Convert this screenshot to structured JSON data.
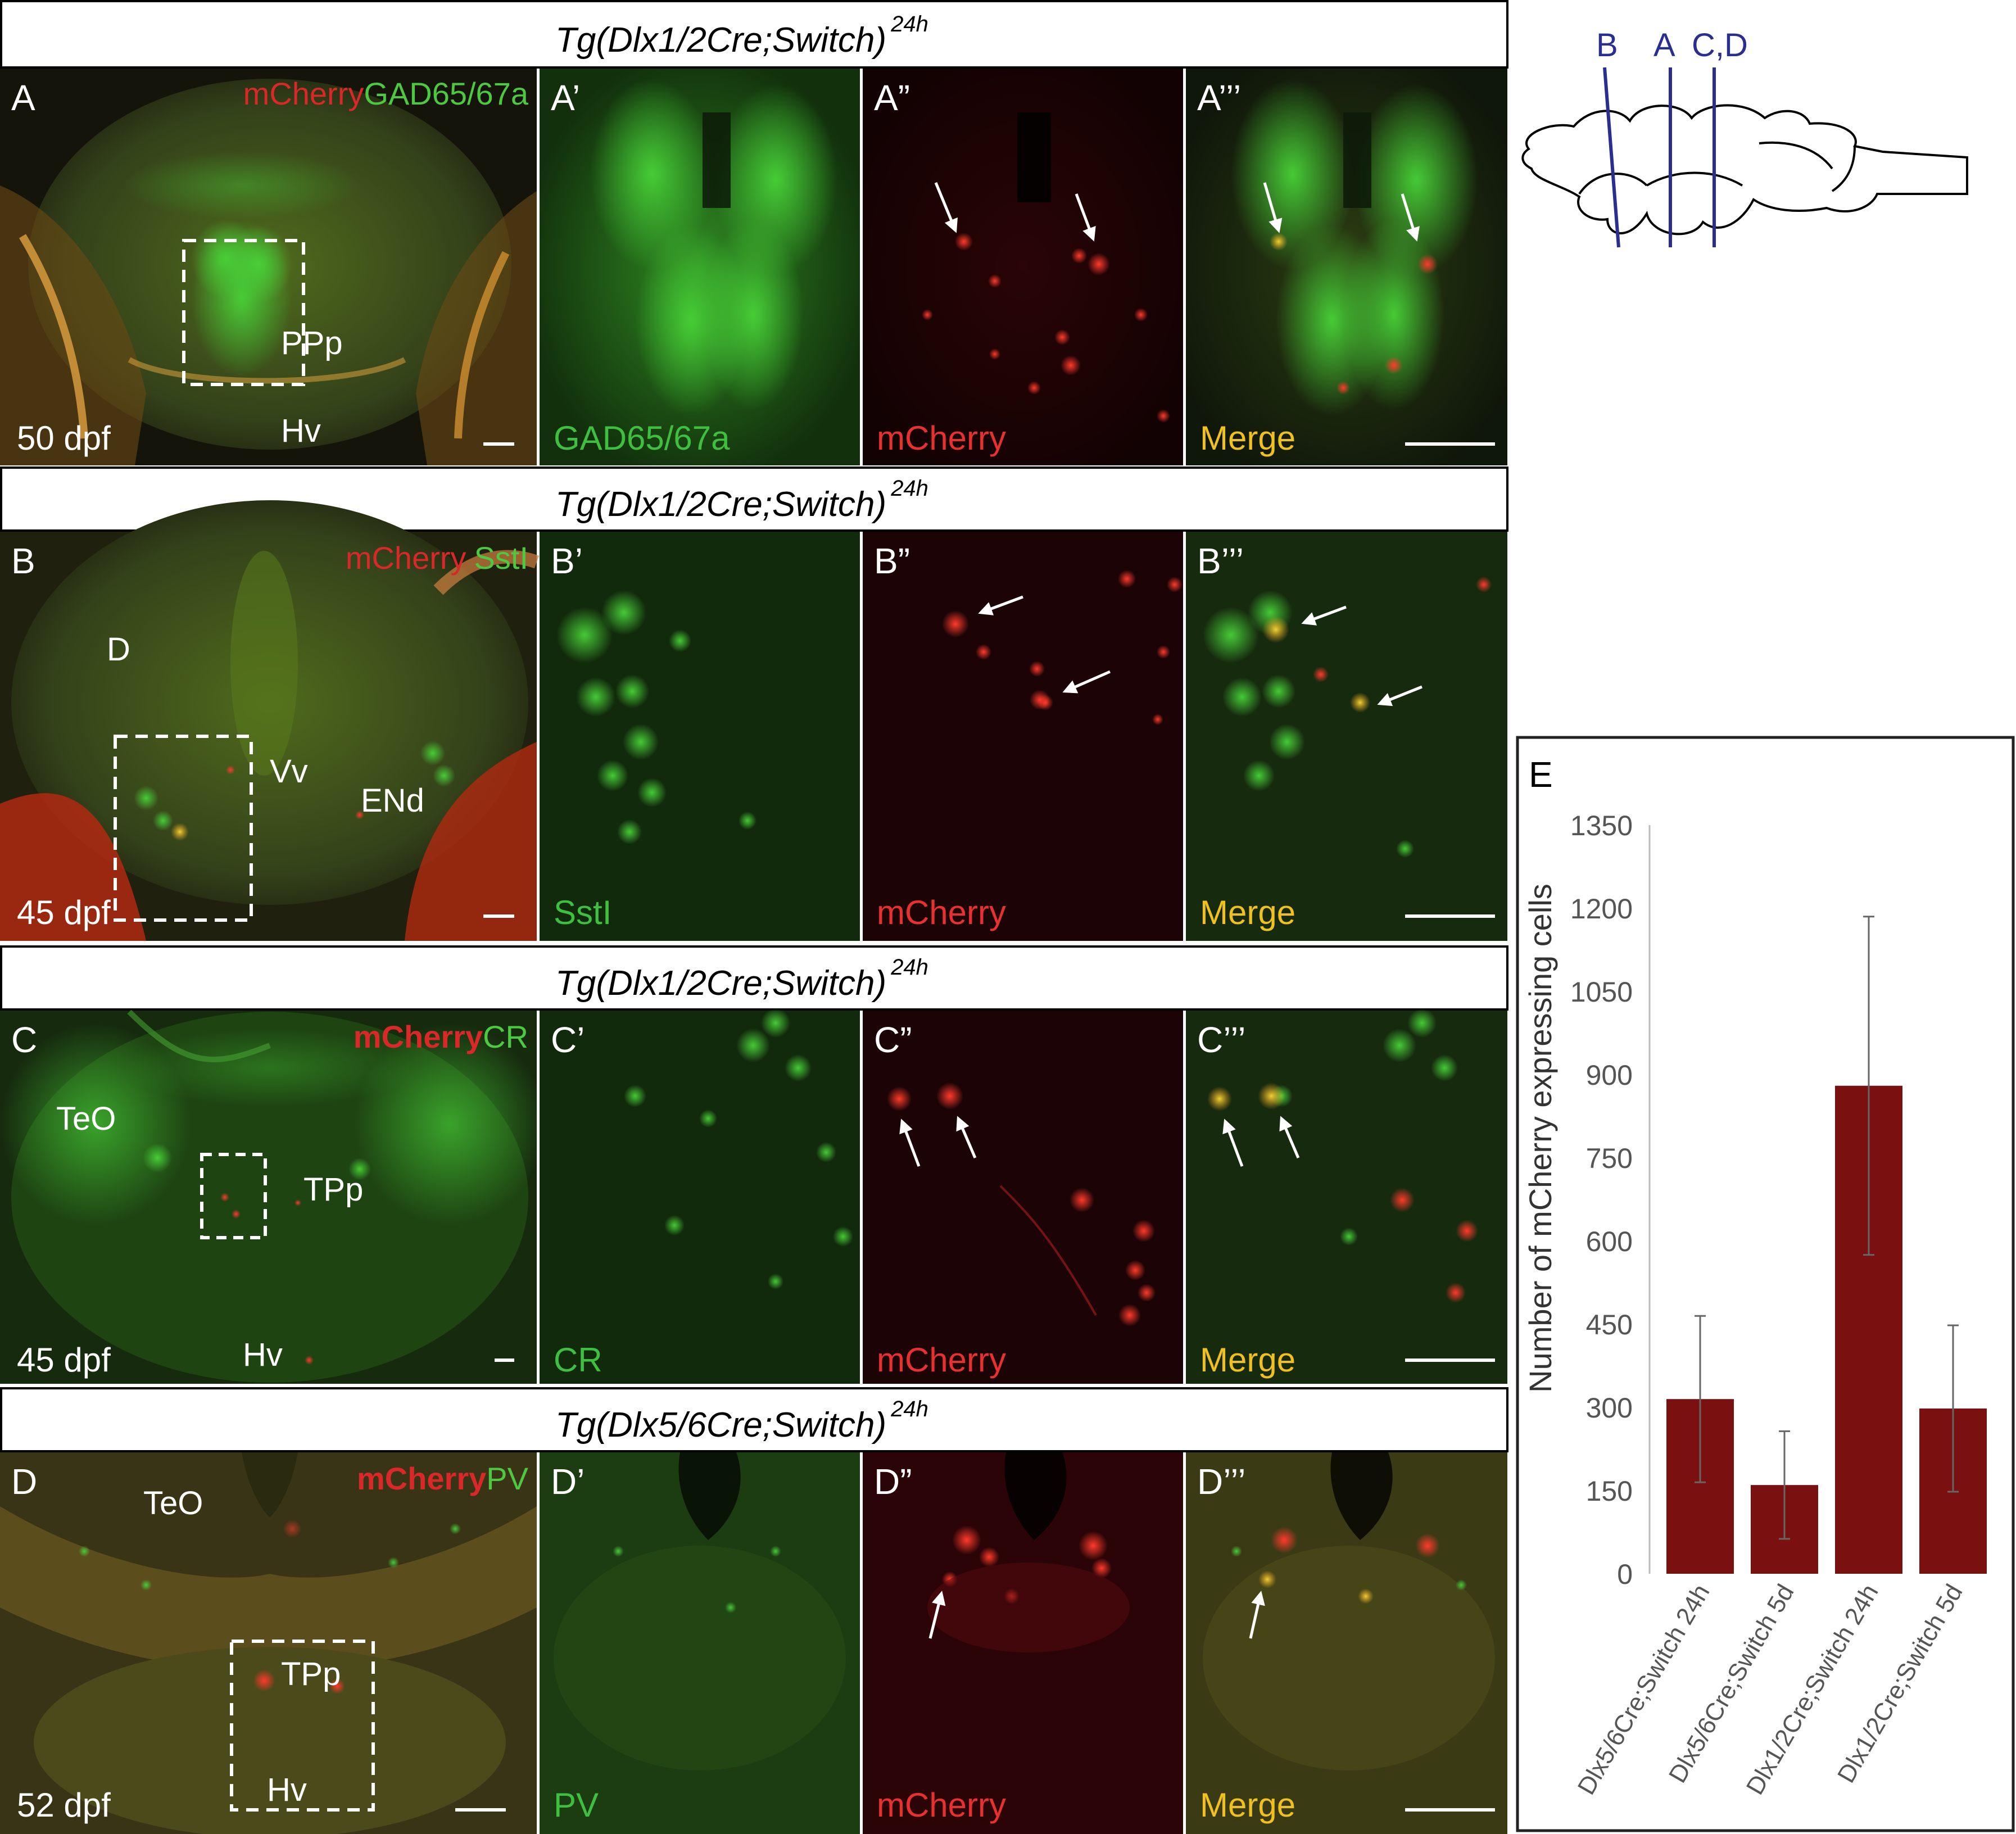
{
  "rows": [
    {
      "title_main": "Tg(Dlx1/2Cre;Switch)",
      "title_sup": "24h",
      "overview": {
        "letter": "A",
        "stain": {
          "red": "mCherry",
          "green": "GAD65/67a"
        },
        "stage": "50 dpf",
        "regions": [
          "PPp",
          "Hv"
        ]
      },
      "panels": [
        {
          "letter": "A’",
          "channel": "GAD65/67a",
          "color": "#3fbf3f"
        },
        {
          "letter": "A”",
          "channel": "mCherry",
          "color": "#e83030"
        },
        {
          "letter": "A’’’",
          "channel": "Merge",
          "color": "#f0c020"
        }
      ]
    },
    {
      "title_main": "Tg(Dlx1/2Cre;Switch)",
      "title_sup": "24h",
      "overview": {
        "letter": "B",
        "stain": {
          "red": "mCherry",
          "green": "SstI"
        },
        "stage": "45 dpf",
        "regions": [
          "D",
          "Vv",
          "ENd"
        ]
      },
      "panels": [
        {
          "letter": "B’",
          "channel": "SstI",
          "color": "#3fbf3f"
        },
        {
          "letter": "B”",
          "channel": "mCherry",
          "color": "#e83030"
        },
        {
          "letter": "B’’’",
          "channel": "Merge",
          "color": "#f0c020"
        }
      ]
    },
    {
      "title_main": "Tg(Dlx1/2Cre;Switch)",
      "title_sup": "24h",
      "overview": {
        "letter": "C",
        "stain": {
          "red": "mCherry",
          "green": "CR"
        },
        "stage": "45 dpf",
        "regions": [
          "TeO",
          "TPp",
          "Hv"
        ]
      },
      "panels": [
        {
          "letter": "C’",
          "channel": "CR",
          "color": "#3fbf3f"
        },
        {
          "letter": "C”",
          "channel": "mCherry",
          "color": "#e83030"
        },
        {
          "letter": "C’’’",
          "channel": "Merge",
          "color": "#f0c020"
        }
      ]
    },
    {
      "title_main": "Tg(Dlx5/6Cre;Switch)",
      "title_sup": "24h",
      "overview": {
        "letter": "D",
        "stain": {
          "red": "mCherry",
          "green": "PV"
        },
        "stage": "52 dpf",
        "regions": [
          "TeO",
          "TPp",
          "Hv"
        ]
      },
      "panels": [
        {
          "letter": "D’",
          "channel": "PV",
          "color": "#3fbf3f"
        },
        {
          "letter": "D”",
          "channel": "mCherry",
          "color": "#e83030"
        },
        {
          "letter": "D’’’",
          "channel": "Merge",
          "color": "#f0c020"
        }
      ]
    }
  ],
  "schematic": {
    "labels": [
      "B",
      "A",
      "C,D"
    ],
    "line_color": "#2a2f8f"
  },
  "chart_data": {
    "type": "bar",
    "panel_letter": "E",
    "categories": [
      "Dlx5/6Cre;Switch 24h",
      "Dlx5/6Cre;Switch 5d",
      "Dlx1/2Cre;Switch 24h",
      "Dlx1/2Cre;Switch 5d"
    ],
    "values": [
      315,
      160,
      880,
      298
    ],
    "errors": [
      150,
      97,
      305,
      150
    ],
    "ylabel": "Number of mCherry expressing cells",
    "ylim": [
      0,
      1350
    ],
    "yticks": [
      0,
      150,
      300,
      450,
      600,
      750,
      900,
      1050,
      1200,
      1350
    ],
    "bar_color": "#7b1010",
    "grid": false
  }
}
